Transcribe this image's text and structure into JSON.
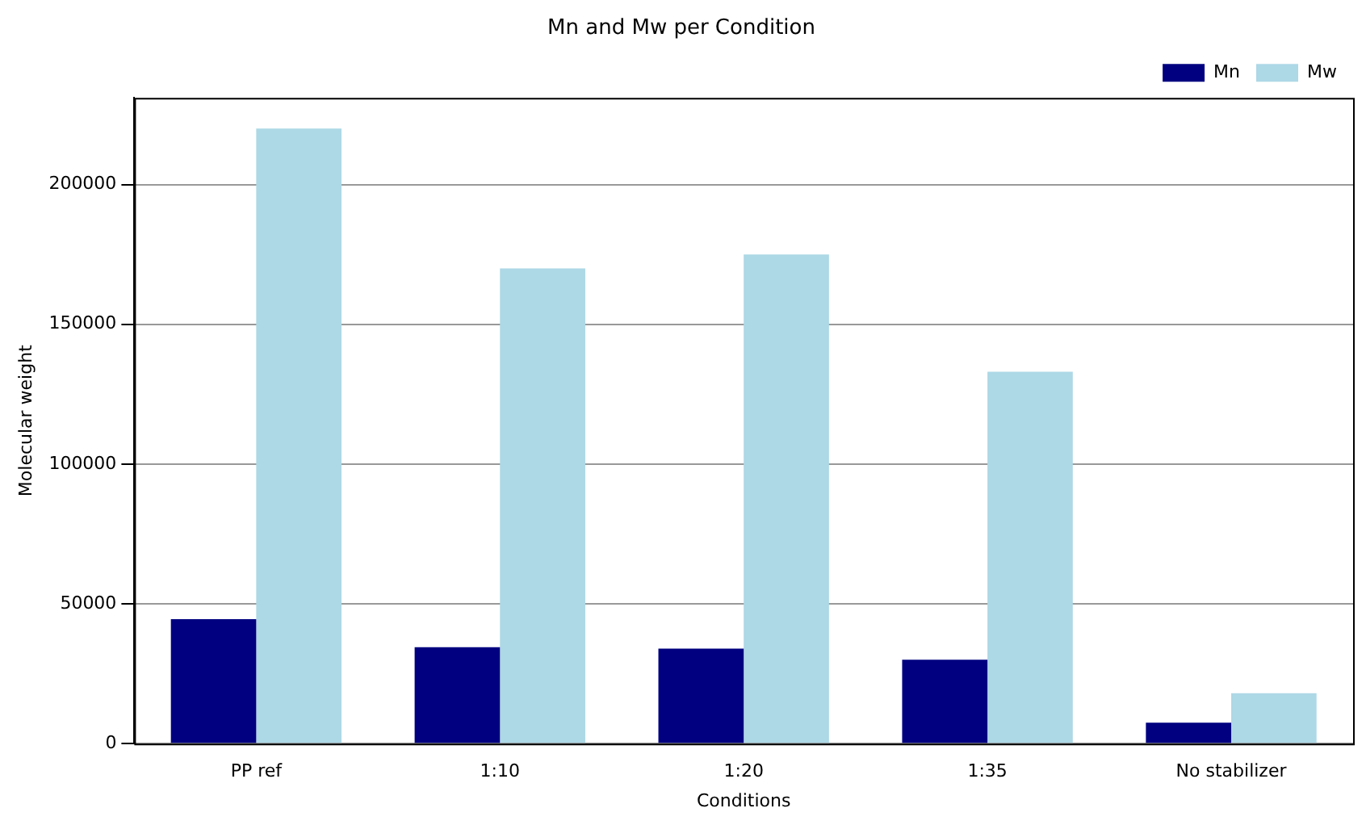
{
  "chart_data": {
    "type": "bar",
    "title": "Mn and Mw per Condition",
    "xlabel": "Conditions",
    "ylabel": "Molecular weight",
    "categories": [
      "PP ref",
      "1:10",
      "1:20",
      "1:35",
      "No stabilizer"
    ],
    "series": [
      {
        "name": "Mn",
        "color": "#000080",
        "values": [
          44500,
          34500,
          34000,
          30000,
          7500
        ]
      },
      {
        "name": "Mw",
        "color": "#add8e6",
        "values": [
          220000,
          170000,
          175000,
          133000,
          18000
        ]
      }
    ],
    "ylim": [
      0,
      231000
    ],
    "yticks": [
      0,
      50000,
      100000,
      150000,
      200000
    ],
    "grid": "y",
    "legend": "top right"
  }
}
